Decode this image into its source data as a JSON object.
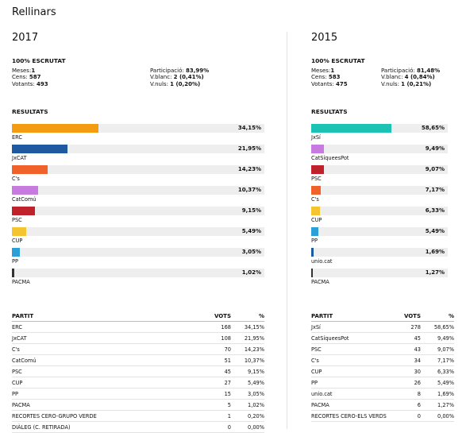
{
  "page": {
    "title": "Rellinars"
  },
  "panels": [
    {
      "year": "2017",
      "status": "100% ESCRUTAT",
      "stats_left": [
        {
          "label": "Meses:",
          "value": "1"
        },
        {
          "label": "Cens:",
          "value": "587"
        },
        {
          "label": "Votants:",
          "value": "493"
        }
      ],
      "stats_right": [
        {
          "label": "Participació:",
          "value": "83,99%"
        },
        {
          "label": "V.blanc:",
          "value": "2 (0,41%)"
        },
        {
          "label": "V.nuls:",
          "value": "1 (0,20%)"
        }
      ],
      "results_heading": "RESULTATS",
      "table_headers": {
        "party": "PARTIT",
        "votes": "VOTS",
        "pct": "%"
      },
      "table_rows": [
        {
          "party": "ERC",
          "votes": "168",
          "pct": "34,15%"
        },
        {
          "party": "JxCAT",
          "votes": "108",
          "pct": "21,95%"
        },
        {
          "party": "C's",
          "votes": "70",
          "pct": "14,23%"
        },
        {
          "party": "CatComú",
          "votes": "51",
          "pct": "10,37%"
        },
        {
          "party": "PSC",
          "votes": "45",
          "pct": "9,15%"
        },
        {
          "party": "CUP",
          "votes": "27",
          "pct": "5,49%"
        },
        {
          "party": "PP",
          "votes": "15",
          "pct": "3,05%"
        },
        {
          "party": "PACMA",
          "votes": "5",
          "pct": "1,02%"
        },
        {
          "party": "RECORTES CERO-GRUPO VERDE",
          "votes": "1",
          "pct": "0,20%"
        },
        {
          "party": "DIÀLEG (C. RETIRADA)",
          "votes": "0",
          "pct": "0,00%"
        }
      ]
    },
    {
      "year": "2015",
      "status": "100% ESCRUTAT",
      "stats_left": [
        {
          "label": "Meses:",
          "value": "1"
        },
        {
          "label": "Cens:",
          "value": "583"
        },
        {
          "label": "Votants:",
          "value": "475"
        }
      ],
      "stats_right": [
        {
          "label": "Participació:",
          "value": "81,48%"
        },
        {
          "label": "V.blanc:",
          "value": "4 (0,84%)"
        },
        {
          "label": "V.nuls:",
          "value": "1 (0,21%)"
        }
      ],
      "results_heading": "RESULTATS",
      "table_headers": {
        "party": "PARTIT",
        "votes": "VOTS",
        "pct": "%"
      },
      "table_rows": [
        {
          "party": "JxSí",
          "votes": "278",
          "pct": "58,65%"
        },
        {
          "party": "CatSíqueesPot",
          "votes": "45",
          "pct": "9,49%"
        },
        {
          "party": "PSC",
          "votes": "43",
          "pct": "9,07%"
        },
        {
          "party": "C's",
          "votes": "34",
          "pct": "7,17%"
        },
        {
          "party": "CUP",
          "votes": "30",
          "pct": "6,33%"
        },
        {
          "party": "PP",
          "votes": "26",
          "pct": "5,49%"
        },
        {
          "party": "unio.cat",
          "votes": "8",
          "pct": "1,69%"
        },
        {
          "party": "PACMA",
          "votes": "6",
          "pct": "1,27%"
        },
        {
          "party": "RECORTES CERO-ELS VERDS",
          "votes": "0",
          "pct": "0,00%"
        }
      ]
    }
  ],
  "chart_data": [
    {
      "type": "bar",
      "title": "",
      "categories": [
        "ERC",
        "JxCAT",
        "C's",
        "CatComú",
        "PSC",
        "CUP",
        "PP",
        "PACMA"
      ],
      "values": [
        34.15,
        21.95,
        14.23,
        10.37,
        9.15,
        5.49,
        3.05,
        1.02
      ],
      "labels": [
        "34,15%",
        "21,95%",
        "14,23%",
        "10,37%",
        "9,15%",
        "5,49%",
        "3,05%",
        "1,02%"
      ],
      "colors": [
        "#f39c12",
        "#1f5aa0",
        "#f0622a",
        "#c77be0",
        "#c0222c",
        "#f5c531",
        "#2b9fd6",
        "#333333"
      ],
      "xlim": [
        0,
        100
      ]
    },
    {
      "type": "bar",
      "title": "",
      "categories": [
        "JxSí",
        "CatSíqueesPot",
        "PSC",
        "C's",
        "CUP",
        "PP",
        "unio.cat",
        "PACMA"
      ],
      "values": [
        58.65,
        9.49,
        9.07,
        7.17,
        6.33,
        5.49,
        1.69,
        1.27
      ],
      "labels": [
        "58,65%",
        "9,49%",
        "9,07%",
        "7,17%",
        "6,33%",
        "5,49%",
        "1,69%",
        "1,27%"
      ],
      "colors": [
        "#1cc2b3",
        "#c77be0",
        "#c0222c",
        "#f0622a",
        "#f5c531",
        "#2b9fd6",
        "#1f5aa0",
        "#333333"
      ],
      "xlim": [
        0,
        100
      ]
    }
  ]
}
